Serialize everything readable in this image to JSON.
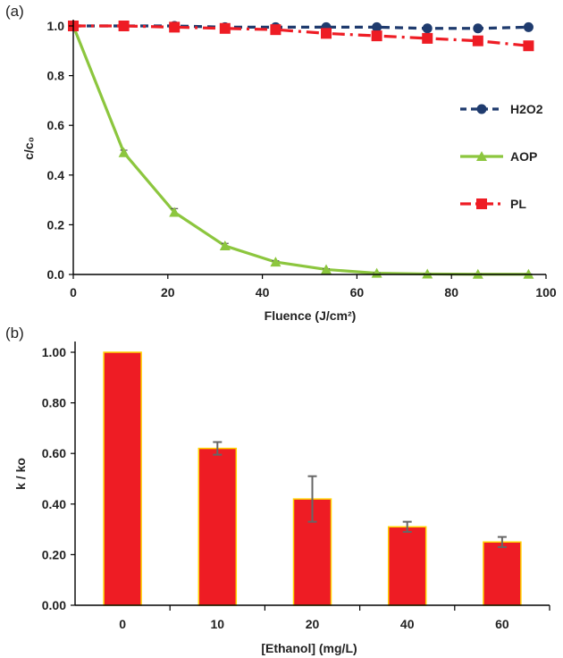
{
  "chart_data": [
    {
      "panel": "(a)",
      "type": "line",
      "xlabel": "Fluence (J/cm²)",
      "ylabel": "c/c₀",
      "xlim": [
        0,
        100
      ],
      "ylim": [
        0,
        1.0
      ],
      "xticks": [
        "0",
        "20",
        "40",
        "60",
        "80",
        "100"
      ],
      "yticks": [
        "0.0",
        "0.2",
        "0.4",
        "0.6",
        "0.8",
        "1.0"
      ],
      "legend_position": "right",
      "grid": false,
      "series": [
        {
          "name": "H2O2",
          "color": "#1f3b6e",
          "marker": "circle",
          "line_style": "dashed",
          "x": [
            0,
            10.7,
            21.4,
            32.1,
            42.8,
            53.5,
            64.2,
            74.9,
            85.6,
            96.3
          ],
          "y": [
            1.0,
            1.0,
            1.0,
            0.995,
            0.995,
            0.995,
            0.995,
            0.99,
            0.99,
            0.995
          ]
        },
        {
          "name": "AOP",
          "color": "#8cc63e",
          "marker": "triangle",
          "line_style": "solid",
          "x": [
            0,
            10.7,
            21.4,
            32.1,
            42.8,
            53.5,
            64.2,
            74.9,
            85.6,
            96.3
          ],
          "y": [
            1.0,
            0.49,
            0.25,
            0.115,
            0.05,
            0.02,
            0.005,
            0.002,
            0.001,
            0.001
          ],
          "error": [
            0,
            0.01,
            0.015,
            0.01,
            0.005,
            0.003,
            0.002,
            0.001,
            0.001,
            0.001
          ]
        },
        {
          "name": "PL",
          "color": "#ee1c24",
          "marker": "square",
          "line_style": "dash-dot",
          "x": [
            0,
            10.7,
            21.4,
            32.1,
            42.8,
            53.5,
            64.2,
            74.9,
            85.6,
            96.3
          ],
          "y": [
            1.0,
            1.0,
            0.995,
            0.99,
            0.985,
            0.97,
            0.96,
            0.95,
            0.94,
            0.92
          ]
        }
      ]
    },
    {
      "panel": "(b)",
      "type": "bar",
      "xlabel": "[Ethanol] (mg/L)",
      "ylabel": "k / ko",
      "categories": [
        "0",
        "10",
        "20",
        "40",
        "60"
      ],
      "values": [
        1.0,
        0.62,
        0.42,
        0.31,
        0.25
      ],
      "error": [
        0.0,
        0.025,
        0.09,
        0.02,
        0.02
      ],
      "ylim": [
        0,
        1.0
      ],
      "yticks": [
        "0.00",
        "0.20",
        "0.40",
        "0.60",
        "0.80",
        "1.00"
      ],
      "bar_color": "#ee1c24",
      "bar_edge_color": "#ffd400",
      "grid": false
    }
  ]
}
